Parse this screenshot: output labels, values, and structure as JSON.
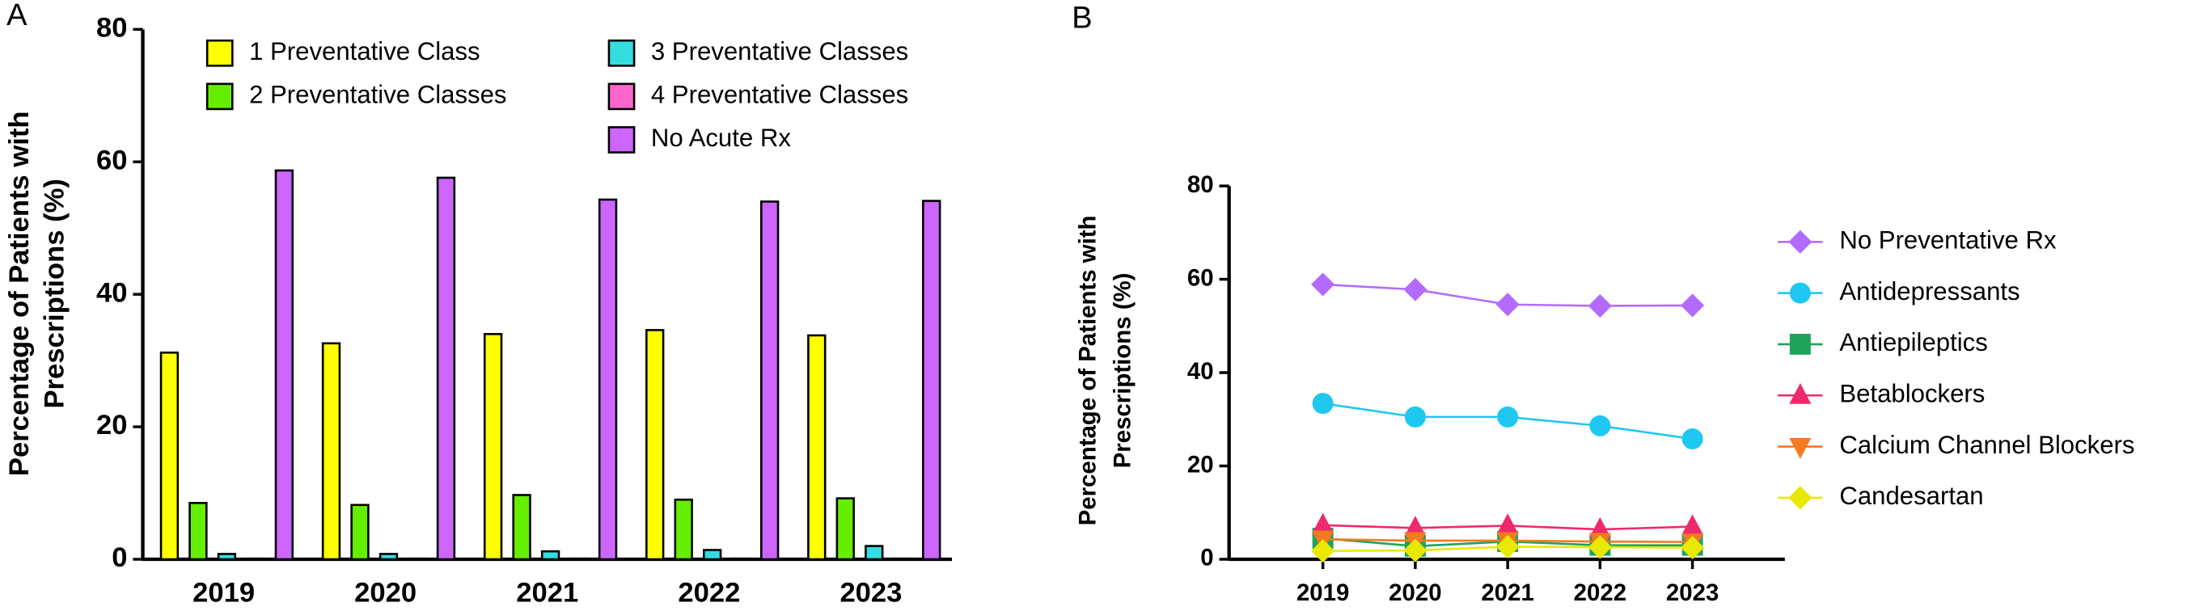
{
  "chart_data": [
    {
      "type": "bar",
      "panel_label": "A",
      "y_label": [
        "Percentage of Patients with",
        "Prescriptions (%)"
      ],
      "categories": [
        "2019",
        "2020",
        "2021",
        "2022",
        "2023"
      ],
      "series": [
        {
          "name": "1 Preventative Class",
          "color": "#ffff00",
          "values": [
            31.2,
            32.6,
            34.0,
            34.6,
            33.8
          ]
        },
        {
          "name": "2 Preventative Classes",
          "color": "#66ee00",
          "values": [
            8.5,
            8.2,
            9.7,
            9.0,
            9.2
          ]
        },
        {
          "name": "3 Preventative Classes",
          "color": "#33dde0",
          "values": [
            0.8,
            0.8,
            1.2,
            1.4,
            2.0
          ]
        },
        {
          "name": "4 Preventative Classes",
          "color": "#ff66cc",
          "values": [
            0.1,
            0.1,
            0.1,
            0.1,
            0.1
          ]
        },
        {
          "name": "No Acute Rx",
          "color": "#cc66ff",
          "values": [
            58.7,
            57.6,
            54.3,
            54.0,
            54.1
          ]
        }
      ],
      "ylim": [
        0,
        80
      ],
      "yticks": [
        0,
        20,
        40,
        60,
        80
      ]
    },
    {
      "type": "line",
      "panel_label": "B",
      "y_label": [
        "Percentage of Patients with",
        "Prescriptions (%)"
      ],
      "categories": [
        "2019",
        "2020",
        "2021",
        "2022",
        "2023"
      ],
      "series": [
        {
          "name": "No Preventative Rx",
          "color": "#b36bff",
          "marker": "diamond",
          "values": [
            58.9,
            57.8,
            54.6,
            54.3,
            54.4
          ]
        },
        {
          "name": "Antidepressants",
          "color": "#1ec8f0",
          "marker": "circle",
          "values": [
            33.4,
            30.5,
            30.5,
            28.6,
            25.8
          ]
        },
        {
          "name": "Antiepileptics",
          "color": "#1fa35a",
          "marker": "square",
          "values": [
            4.5,
            2.8,
            3.8,
            3.0,
            3.0
          ]
        },
        {
          "name": "Betablockers",
          "color": "#ee2a6b",
          "marker": "triangle",
          "values": [
            7.3,
            6.7,
            7.2,
            6.4,
            7.0
          ]
        },
        {
          "name": "Calcium Channel Blockers",
          "color": "#f47a20",
          "marker": "triangle-down",
          "values": [
            4.3,
            4.0,
            4.0,
            3.8,
            3.7
          ]
        },
        {
          "name": "Candesartan",
          "color": "#e8e800",
          "marker": "diamond",
          "values": [
            1.8,
            1.9,
            2.7,
            2.6,
            2.5
          ]
        }
      ],
      "ylim": [
        0,
        80
      ],
      "yticks": [
        0,
        20,
        40,
        60,
        80
      ]
    }
  ]
}
